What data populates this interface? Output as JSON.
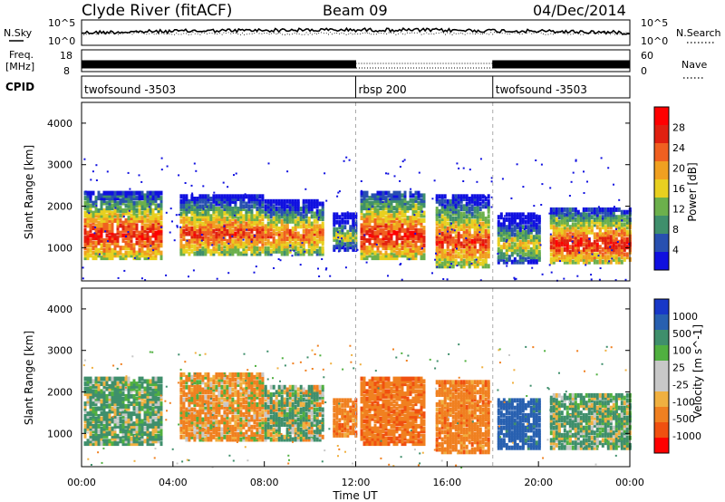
{
  "header": {
    "station": "Clyde River (fitACF)",
    "beam": "Beam 09",
    "date": "04/Dec/2014"
  },
  "noise_panel": {
    "left_label": "N.Sky",
    "left_ticks": [
      "10^5",
      "10^0"
    ],
    "right_label": "N.Search",
    "right_ticks": [
      "10^5",
      "10^0"
    ]
  },
  "freq_panel": {
    "left_label": "Freq.",
    "left_unit": "[MHz]",
    "left_ticks": [
      "18",
      "8"
    ],
    "right_label": "Nave",
    "right_ticks": [
      "60",
      "0"
    ]
  },
  "cpid_panel": {
    "label": "CPID",
    "segments": [
      {
        "name": "twofsound -3503",
        "start_h": 0,
        "end_h": 12
      },
      {
        "name": "rbsp 200",
        "start_h": 12,
        "end_h": 18
      },
      {
        "name": "twofsound -3503",
        "start_h": 18,
        "end_h": 24
      }
    ]
  },
  "colors": {
    "power_scale": [
      "#1010e0",
      "#2850b0",
      "#3f8f6c",
      "#6cb04c",
      "#e8d020",
      "#f0a020",
      "#f06020",
      "#e02010",
      "#ff0000"
    ],
    "velocity_scale": [
      "#ff0000",
      "#f05010",
      "#f08020",
      "#f0b040",
      "#c8c8c8",
      "#c8c8c8",
      "#50b040",
      "#3f8f6c",
      "#2860b0",
      "#1838c8"
    ]
  },
  "chart_data": [
    {
      "type": "heatmap",
      "name": "power",
      "ylabel": "Slant Range [km]",
      "yticks": [
        "1000",
        "2000",
        "3000",
        "4000"
      ],
      "ylim": [
        200,
        4500
      ],
      "xlim": [
        0,
        24
      ],
      "colorbar_label": "Power [dB]",
      "colorbar_ticks": [
        "4",
        "8",
        "12",
        "16",
        "20",
        "24",
        "28"
      ],
      "colorbar_range": [
        0,
        32
      ],
      "segments": [
        {
          "start_h": 0.1,
          "end_h": 3.5,
          "low_km": 700,
          "high_km": 2300,
          "core": 28
        },
        {
          "start_h": 4.3,
          "end_h": 7.9,
          "low_km": 800,
          "high_km": 2200,
          "core": 26
        },
        {
          "start_h": 8.0,
          "end_h": 10.6,
          "low_km": 800,
          "high_km": 2100,
          "core": 24
        },
        {
          "start_h": 11.0,
          "end_h": 12.0,
          "low_km": 900,
          "high_km": 1800,
          "core": 16
        },
        {
          "start_h": 12.2,
          "end_h": 15.0,
          "low_km": 700,
          "high_km": 2300,
          "core": 28
        },
        {
          "start_h": 15.5,
          "end_h": 17.8,
          "low_km": 500,
          "high_km": 2200,
          "core": 26
        },
        {
          "start_h": 18.2,
          "end_h": 20.0,
          "low_km": 600,
          "high_km": 1800,
          "core": 18
        },
        {
          "start_h": 20.5,
          "end_h": 24.0,
          "low_km": 600,
          "high_km": 1900,
          "core": 28
        }
      ]
    },
    {
      "type": "heatmap",
      "name": "velocity",
      "ylabel": "Slant Range [km]",
      "yticks": [
        "1000",
        "2000",
        "3000",
        "4000"
      ],
      "ylim": [
        200,
        4500
      ],
      "xlabel": "Time UT",
      "xticks": [
        "00:00",
        "04:00",
        "08:00",
        "12:00",
        "16:00",
        "20:00",
        "00:00"
      ],
      "xlim": [
        0,
        24
      ],
      "colorbar_label": "Velocity [m s^-1]",
      "colorbar_ticks": [
        "1000",
        "500",
        "100",
        "25",
        "-25",
        "-100",
        "-500",
        "-1000"
      ],
      "segments": [
        {
          "start_h": 0.1,
          "end_h": 3.5,
          "low_km": 700,
          "high_km": 2300,
          "core": 150
        },
        {
          "start_h": 4.3,
          "end_h": 7.9,
          "low_km": 800,
          "high_km": 2400,
          "core": -150
        },
        {
          "start_h": 8.0,
          "end_h": 10.6,
          "low_km": 800,
          "high_km": 2100,
          "core": 100
        },
        {
          "start_h": 11.0,
          "end_h": 12.0,
          "low_km": 900,
          "high_km": 1800,
          "core": -300
        },
        {
          "start_h": 12.2,
          "end_h": 15.0,
          "low_km": 700,
          "high_km": 2300,
          "core": -400
        },
        {
          "start_h": 15.5,
          "end_h": 17.8,
          "low_km": 500,
          "high_km": 2200,
          "core": -300
        },
        {
          "start_h": 18.2,
          "end_h": 20.0,
          "low_km": 600,
          "high_km": 1800,
          "core": 700
        },
        {
          "start_h": 20.5,
          "end_h": 24.0,
          "low_km": 600,
          "high_km": 1900,
          "core": 150
        }
      ]
    }
  ]
}
